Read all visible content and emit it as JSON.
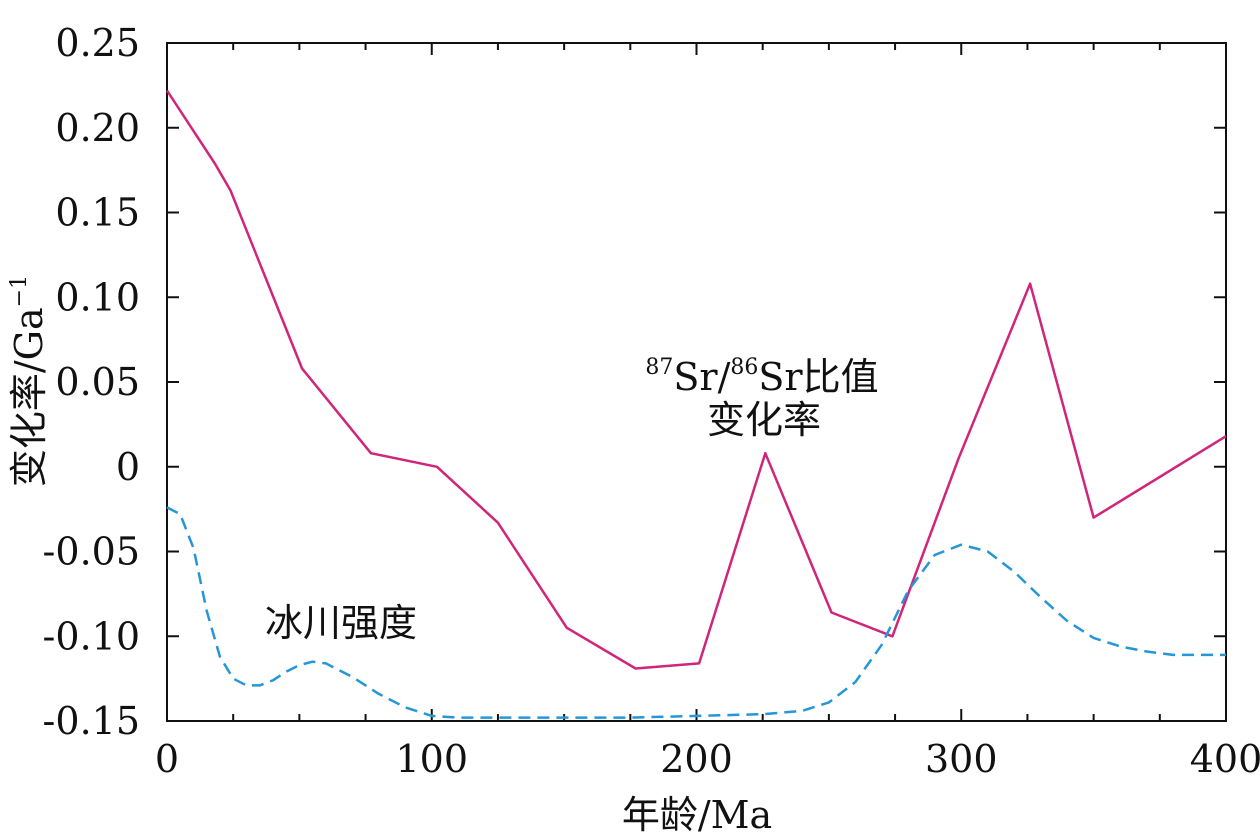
{
  "chart_data": {
    "type": "line",
    "xlabel": "年龄/Ma",
    "ylabel": "变化率/Ga",
    "ylabel_sup": "−1",
    "xlim": [
      0,
      400
    ],
    "ylim": [
      -0.15,
      0.25
    ],
    "xticks": [
      "0",
      "100",
      "200",
      "300",
      "400"
    ],
    "xtick_values": [
      0,
      100,
      200,
      300,
      400
    ],
    "yticks": [
      "0.25",
      "0.20",
      "0.15",
      "0.10",
      "0.05",
      "0",
      "-0.05",
      "-0.10",
      "-0.15"
    ],
    "ytick_values": [
      0.25,
      0.2,
      0.15,
      0.1,
      0.05,
      0,
      -0.05,
      -0.1,
      -0.15
    ],
    "grid": false,
    "series": [
      {
        "key": "sr",
        "color": "#d0257a",
        "style": "solid",
        "x": [
          0,
          18,
          24,
          51,
          77,
          102,
          125,
          151,
          177,
          201,
          226,
          251,
          274,
          299,
          326,
          350,
          400
        ],
        "y": [
          0.222,
          0.179,
          0.163,
          0.058,
          0.008,
          0.0,
          -0.033,
          -0.095,
          -0.119,
          -0.116,
          0.008,
          -0.086,
          -0.1,
          0.005,
          0.108,
          -0.03,
          0.018
        ]
      },
      {
        "key": "glacier",
        "color": "#2596d6",
        "style": "dashed",
        "x": [
          0,
          5,
          10,
          15,
          20,
          25,
          30,
          35,
          40,
          45,
          50,
          55,
          60,
          70,
          80,
          90,
          100,
          110,
          125,
          150,
          175,
          200,
          225,
          240,
          250,
          260,
          270,
          280,
          290,
          300,
          310,
          320,
          330,
          340,
          350,
          360,
          370,
          380,
          390,
          400
        ],
        "y": [
          -0.024,
          -0.028,
          -0.048,
          -0.085,
          -0.112,
          -0.125,
          -0.129,
          -0.129,
          -0.126,
          -0.121,
          -0.117,
          -0.115,
          -0.116,
          -0.124,
          -0.134,
          -0.142,
          -0.147,
          -0.148,
          -0.148,
          -0.148,
          -0.148,
          -0.147,
          -0.146,
          -0.144,
          -0.139,
          -0.127,
          -0.105,
          -0.073,
          -0.052,
          -0.046,
          -0.05,
          -0.062,
          -0.077,
          -0.091,
          -0.101,
          -0.106,
          -0.109,
          -0.111,
          -0.111,
          -0.111
        ]
      }
    ],
    "annotations": {
      "sr": {
        "p1": "87",
        "t1": "Sr/",
        "p2": "86",
        "t2": "Sr比值",
        "line2": "变化率"
      },
      "glacier": "冰川强度"
    }
  }
}
